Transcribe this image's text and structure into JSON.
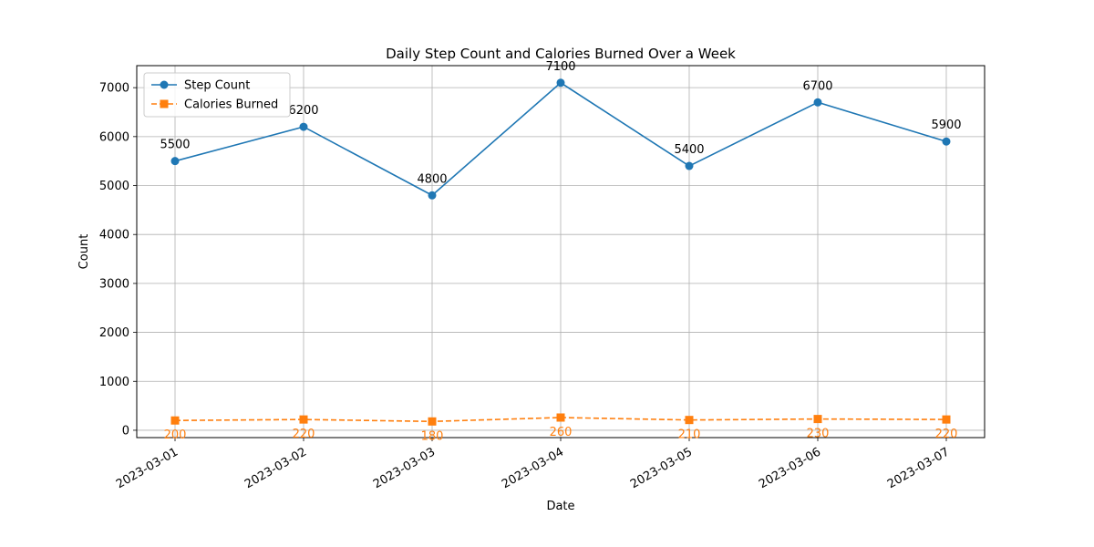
{
  "chart_data": {
    "type": "line",
    "title": "Daily Step Count and Calories Burned Over a Week",
    "xlabel": "Date",
    "ylabel": "Count",
    "categories": [
      "2023-03-01",
      "2023-03-02",
      "2023-03-03",
      "2023-03-04",
      "2023-03-05",
      "2023-03-06",
      "2023-03-07"
    ],
    "ylim": [
      -150,
      7450
    ],
    "yticks": [
      0,
      1000,
      2000,
      3000,
      4000,
      5000,
      6000,
      7000
    ],
    "grid": true,
    "legend_position": "top-left",
    "series": [
      {
        "name": "Step Count",
        "values": [
          5500,
          6200,
          4800,
          7100,
          5400,
          6700,
          5900
        ],
        "color": "#1f77b4",
        "marker": "circle",
        "linestyle": "solid",
        "labels": [
          "5500",
          "6200",
          "4800",
          "7100",
          "5400",
          "6700",
          "5900"
        ]
      },
      {
        "name": "Calories Burned",
        "values": [
          200,
          220,
          180,
          260,
          210,
          230,
          220
        ],
        "color": "#ff7f0e",
        "marker": "square",
        "linestyle": "dashed",
        "labels": [
          "200",
          "220",
          "180",
          "260",
          "210",
          "230",
          "220"
        ]
      }
    ]
  }
}
